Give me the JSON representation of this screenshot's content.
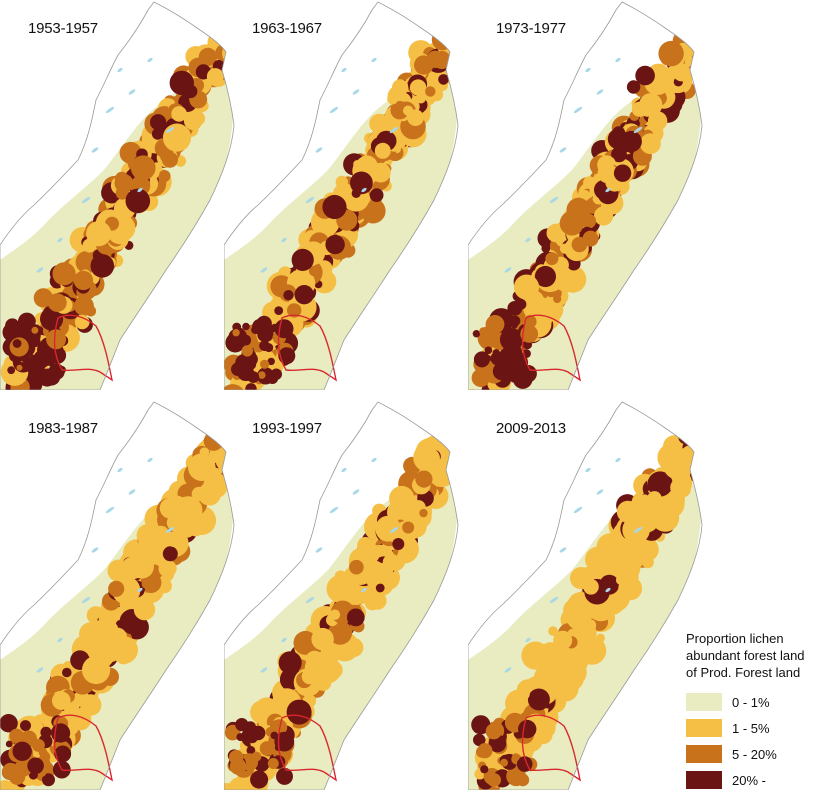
{
  "panels": [
    {
      "label": "1953-1957",
      "density": 1.0
    },
    {
      "label": "1963-1967",
      "density": 0.85
    },
    {
      "label": "1973-1977",
      "density": 0.9
    },
    {
      "label": "1983-1987",
      "density": 0.55
    },
    {
      "label": "1993-1997",
      "density": 0.45
    },
    {
      "label": "2009-2013",
      "density": 0.3
    }
  ],
  "legend": {
    "title_lines": [
      "Proportion lichen",
      "abundant forest land",
      "of Prod. Forest land"
    ],
    "items": [
      {
        "label": "0 - 1%",
        "color": "#e8ecc0"
      },
      {
        "label": "1 - 5%",
        "color": "#f5bf45"
      },
      {
        "label": "5 - 20%",
        "color": "#c8731c"
      },
      {
        "label": "20% -",
        "color": "#6b1414"
      }
    ]
  },
  "colors": {
    "outline": "#9a9a9a",
    "lakes": "#a8d8e8",
    "boundary": "#d8282e"
  }
}
